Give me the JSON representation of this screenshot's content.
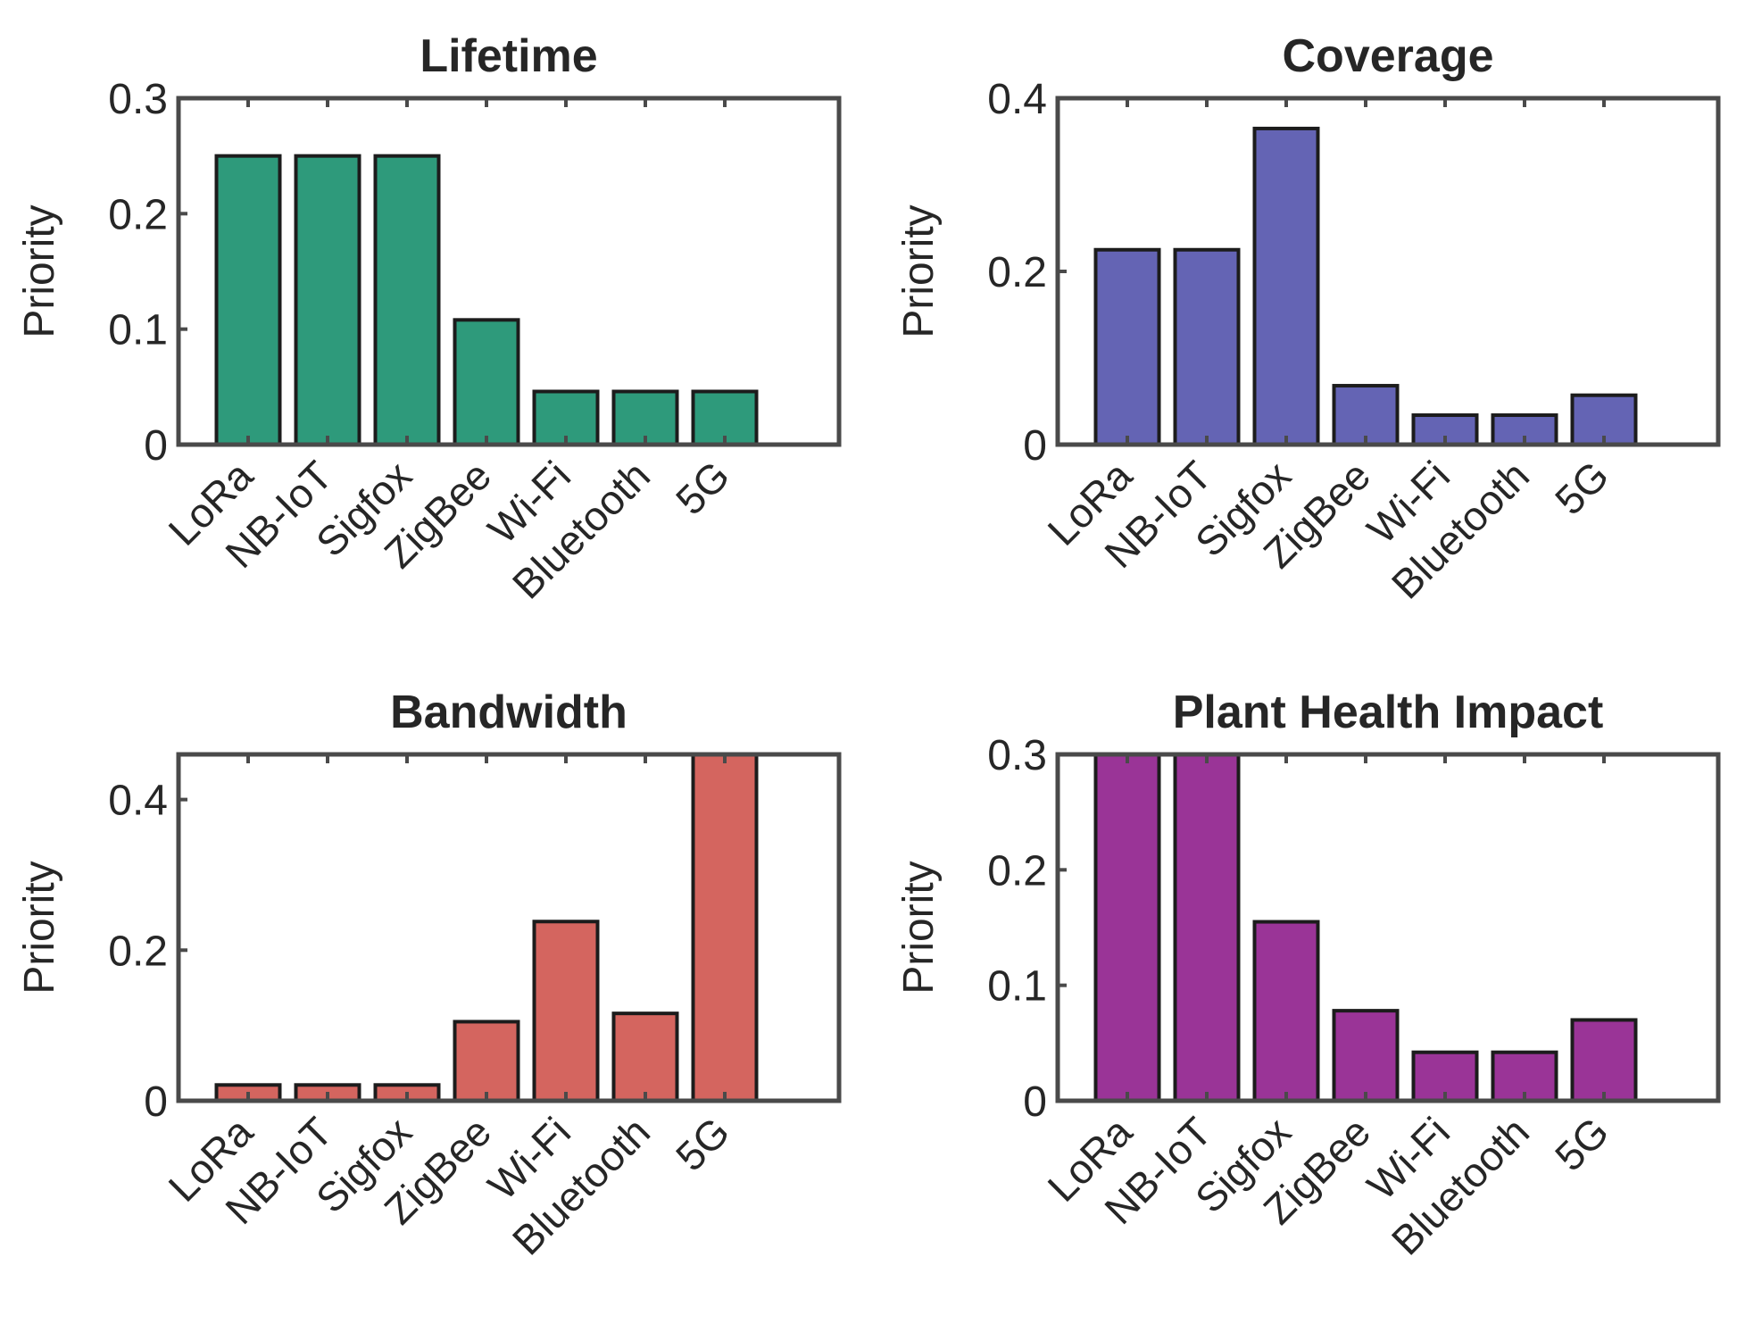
{
  "chart_data": [
    {
      "type": "bar",
      "title": "Lifetime",
      "ylabel": "Priority",
      "xlabel": "",
      "categories": [
        "LoRa",
        "NB-IoT",
        "Sigfox",
        "ZigBee",
        "Wi-Fi",
        "Bluetooth",
        "5G"
      ],
      "values": [
        0.25,
        0.25,
        0.25,
        0.108,
        0.046,
        0.046,
        0.046
      ],
      "ylim": [
        0,
        0.3
      ],
      "yticks": [
        0,
        0.1,
        0.2,
        0.3
      ],
      "ytick_labels": [
        "0",
        "0.1",
        "0.2",
        "0.3"
      ],
      "color": "#2e9a7b",
      "grid": false
    },
    {
      "type": "bar",
      "title": "Coverage",
      "ylabel": "Priority",
      "xlabel": "",
      "categories": [
        "LoRa",
        "NB-IoT",
        "Sigfox",
        "ZigBee",
        "Wi-Fi",
        "Bluetooth",
        "5G"
      ],
      "values": [
        0.225,
        0.225,
        0.365,
        0.068,
        0.034,
        0.034,
        0.057
      ],
      "ylim": [
        0,
        0.4
      ],
      "yticks": [
        0,
        0.2,
        0.4
      ],
      "ytick_labels": [
        "0",
        "0.2",
        "0.4"
      ],
      "color": "#6464b4",
      "grid": false
    },
    {
      "type": "bar",
      "title": "Bandwidth",
      "ylabel": "Priority",
      "xlabel": "",
      "categories": [
        "LoRa",
        "NB-IoT",
        "Sigfox",
        "ZigBee",
        "Wi-Fi",
        "Bluetooth",
        "5G"
      ],
      "values": [
        0.021,
        0.021,
        0.021,
        0.105,
        0.238,
        0.116,
        0.478
      ],
      "ylim": [
        0,
        0.46
      ],
      "yticks": [
        0,
        0.2,
        0.4
      ],
      "ytick_labels": [
        "0",
        "0.2",
        "0.4"
      ],
      "color": "#d4655f",
      "grid": false
    },
    {
      "type": "bar",
      "title": "Plant Health Impact",
      "ylabel": "Priority",
      "xlabel": "",
      "categories": [
        "LoRa",
        "NB-IoT",
        "Sigfox",
        "ZigBee",
        "Wi-Fi",
        "Bluetooth",
        "5G"
      ],
      "values": [
        0.31,
        0.31,
        0.155,
        0.078,
        0.042,
        0.042,
        0.07
      ],
      "ylim": [
        0,
        0.3
      ],
      "yticks": [
        0,
        0.1,
        0.2,
        0.3
      ],
      "ytick_labels": [
        "0",
        "0.1",
        "0.2",
        "0.3"
      ],
      "color": "#9a3497",
      "grid": false
    }
  ]
}
